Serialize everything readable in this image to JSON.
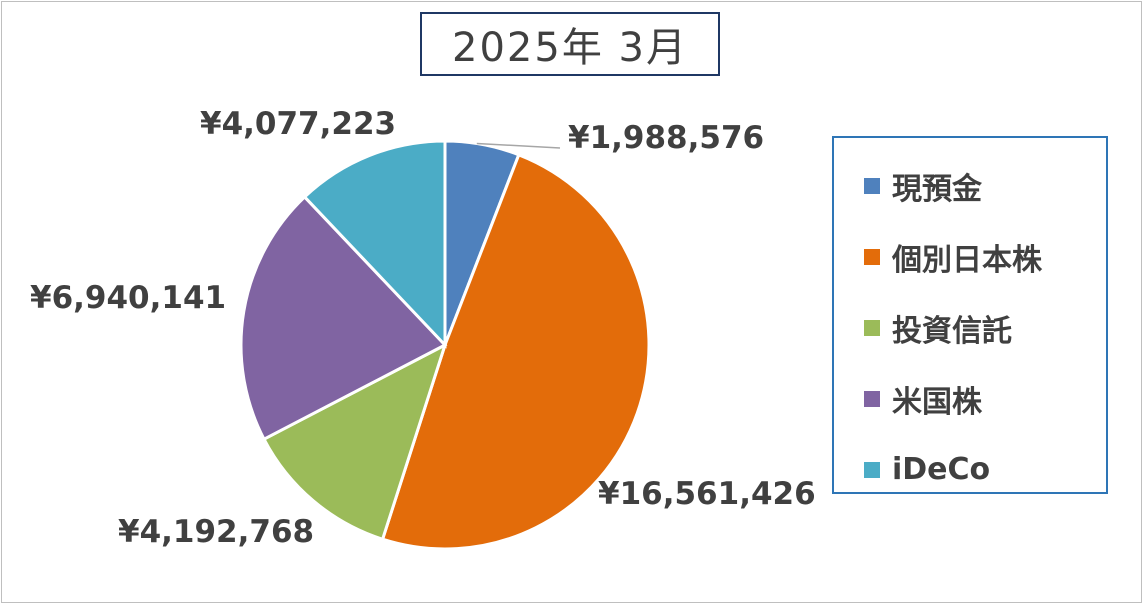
{
  "chart_data": {
    "type": "pie",
    "title": "2025年 3月",
    "categories": [
      "現預金",
      "個別日本株",
      "投資信託",
      "米国株",
      "iDeCo"
    ],
    "values": [
      1988576,
      16561426,
      4192768,
      6940141,
      4077223
    ],
    "value_labels": [
      "¥1,988,576",
      "¥16,561,426",
      "¥4,192,768",
      "¥6,940,141",
      "¥4,077,223"
    ],
    "colors": [
      "#4f81bd",
      "#e36c0a",
      "#9bbb59",
      "#8064a2",
      "#4bacc6"
    ],
    "legend_position": "right"
  }
}
